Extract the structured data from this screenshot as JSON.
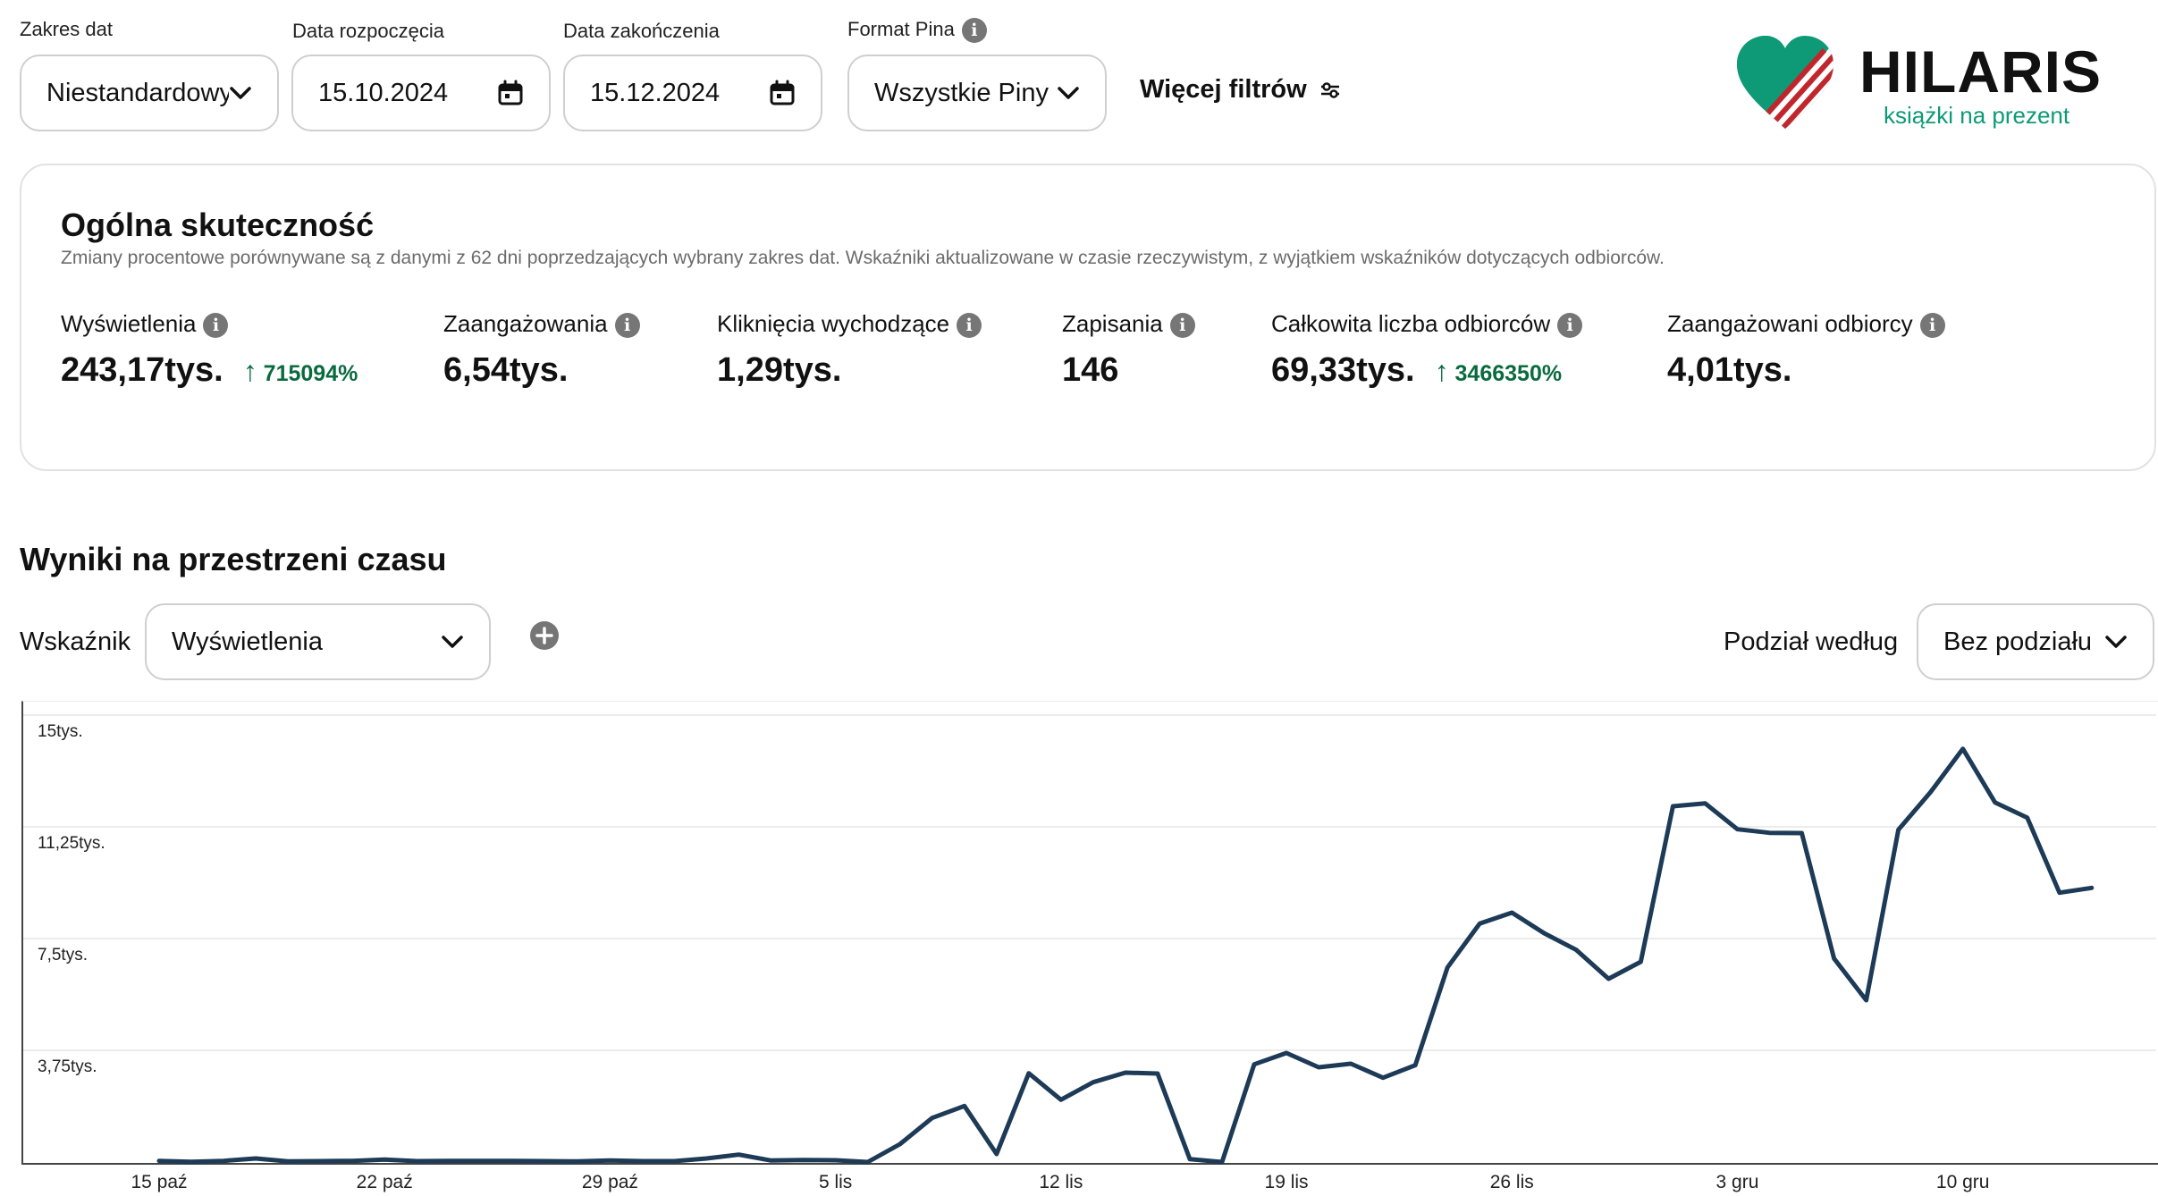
{
  "filters": {
    "date_range": {
      "label": "Zakres dat",
      "value": "Niestandardowy"
    },
    "start_date": {
      "label": "Data rozpoczęcia",
      "value": "15.10.2024"
    },
    "end_date": {
      "label": "Data zakończenia",
      "value": "15.12.2024"
    },
    "pin_format": {
      "label": "Format Pina",
      "value": "Wszystkie Piny"
    },
    "more_filters": "Więcej filtrów"
  },
  "brand": {
    "name": "HILARIS",
    "tagline": "książki na prezent",
    "colors": {
      "green": "#0e9a76",
      "red": "#c0272d"
    }
  },
  "overview": {
    "title": "Ogólna skuteczność",
    "subtitle": "Zmiany procentowe porównywane są z danymi z 62 dni poprzedzających wybrany zakres dat. Wskaźniki aktualizowane w czasie rzeczywistym, z wyjątkiem wskaźników dotyczących odbiorców.",
    "metrics": [
      {
        "label": "Wyświetlenia",
        "value": "243,17tys.",
        "change": "715094%"
      },
      {
        "label": "Zaangażowania",
        "value": "6,54tys.",
        "change": ""
      },
      {
        "label": "Kliknięcia wychodzące",
        "value": "1,29tys.",
        "change": ""
      },
      {
        "label": "Zapisania",
        "value": "146",
        "change": ""
      },
      {
        "label": "Całkowita liczba odbiorców",
        "value": "69,33tys.",
        "change": "3466350%"
      },
      {
        "label": "Zaangażowani odbiorcy",
        "value": "4,01tys.",
        "change": ""
      }
    ],
    "change_color": "#0a6a3f"
  },
  "timeline": {
    "title": "Wyniki na przestrzeni czasu",
    "metric_label": "Wskaźnik",
    "metric_value": "Wyświetlenia",
    "split_label": "Podział według",
    "split_value": "Bez podziału"
  },
  "chart_data": {
    "type": "line",
    "title": "",
    "xlabel": "",
    "ylabel": "",
    "ylim": [
      0,
      15000
    ],
    "y_ticks": [
      "15tys.",
      "11,25tys.",
      "7,5tys.",
      "3,75tys."
    ],
    "y_tick_values": [
      15000,
      11250,
      7500,
      3750
    ],
    "x_tick_labels": [
      "15 paź",
      "22 paź",
      "29 paź",
      "5 lis",
      "12 lis",
      "19 lis",
      "26 lis",
      "3 gru",
      "10 gru"
    ],
    "x_tick_days": [
      0,
      7,
      14,
      21,
      28,
      35,
      42,
      49,
      56
    ],
    "grid": true,
    "line_color": "#1d3a57",
    "series": [
      {
        "values": [
          40,
          10,
          40,
          120,
          20,
          30,
          40,
          80,
          30,
          40,
          40,
          40,
          30,
          20,
          50,
          30,
          30,
          120,
          250,
          50,
          70,
          60,
          0,
          600,
          1480,
          1880,
          270,
          2980,
          2090,
          2680,
          3000,
          2970,
          100,
          0,
          3280,
          3660,
          3180,
          3300,
          2830,
          3250,
          6530,
          8000,
          8370,
          7680,
          7120,
          6150,
          6720,
          11940,
          12040,
          11170,
          11050,
          11040,
          6830,
          5430,
          11150,
          12420,
          13870,
          12070,
          11560,
          9040,
          9200
        ]
      }
    ]
  }
}
